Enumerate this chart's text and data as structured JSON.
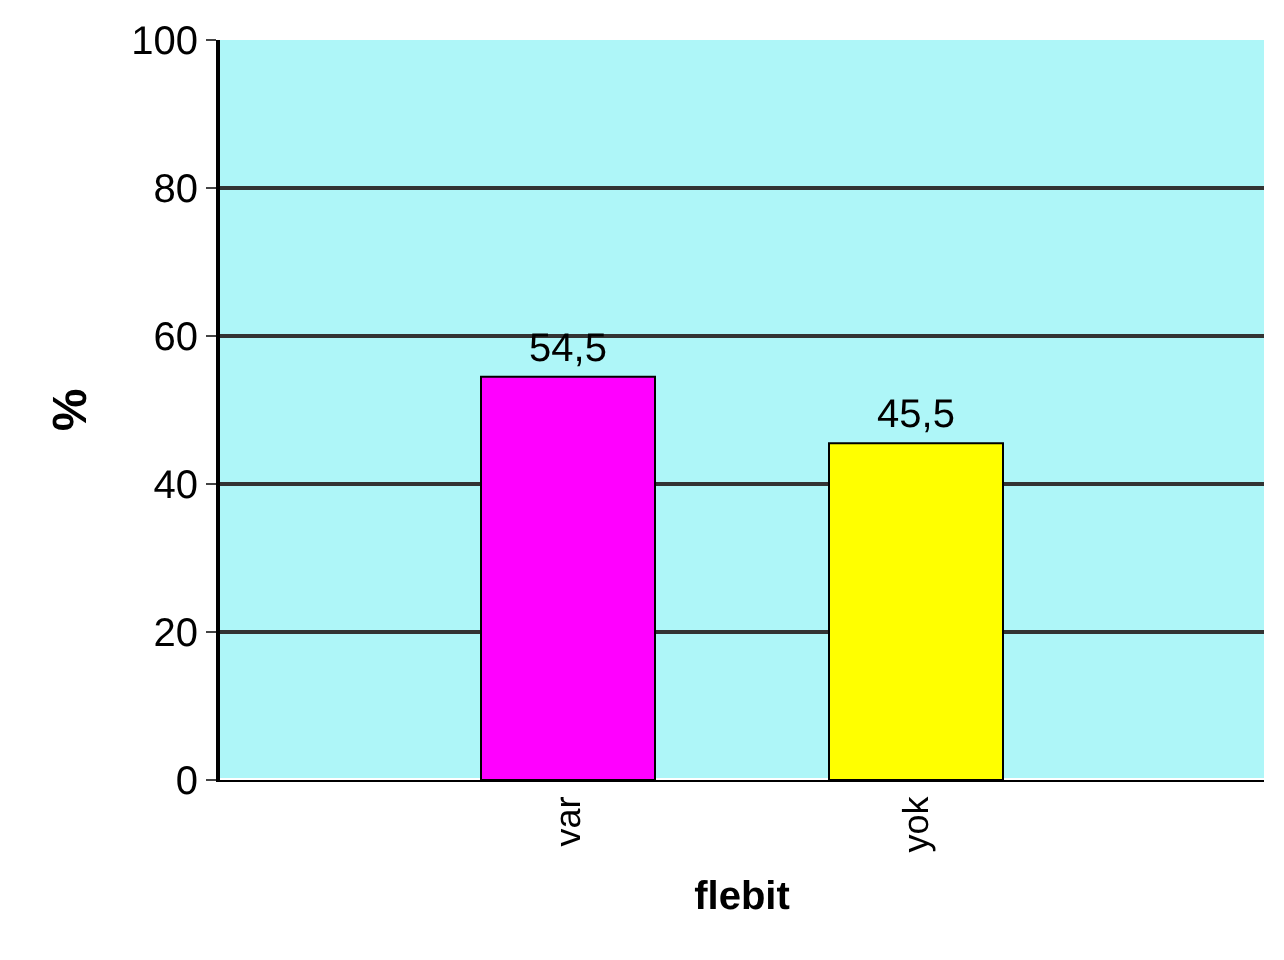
{
  "chart_data": {
    "type": "bar",
    "xlabel": "flebit",
    "ylabel": "%",
    "categories": [
      "var",
      "yok"
    ],
    "values": [
      54.5,
      45.5
    ],
    "colors": [
      "#ff00ff",
      "#ffff00"
    ],
    "value_labels": [
      "54,5",
      "45,5"
    ],
    "ylim": [
      0,
      100
    ],
    "yticks": [
      0,
      20,
      40,
      60,
      80,
      100
    ],
    "grid": "y"
  }
}
